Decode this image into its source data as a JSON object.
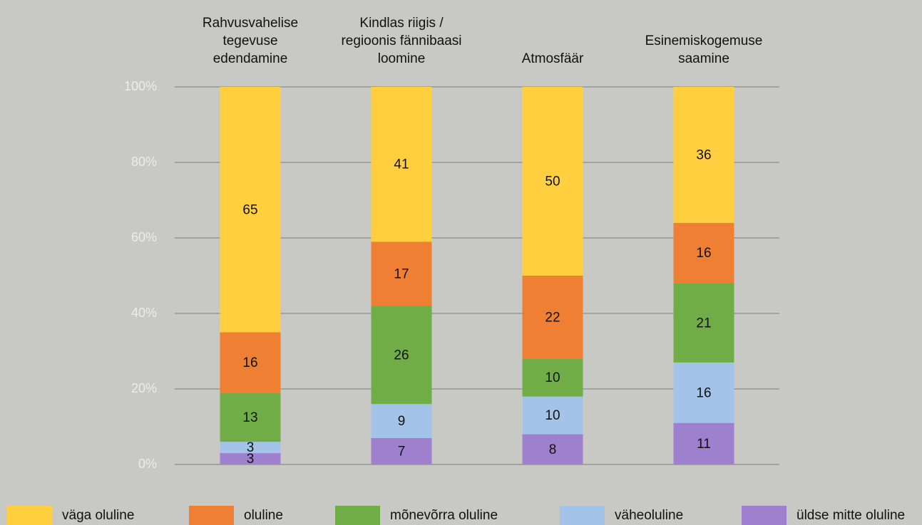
{
  "chart_data": {
    "type": "stacked_bar",
    "categories": [
      "Rahvusvahelise\ntegevuse\nedendamine",
      "Kindlas riigis /\nregioonis fännibaasi\nloomine",
      "Atmosfäär",
      "Esinemiskogemuse\nsaamine"
    ],
    "series": [
      {
        "name": "väga oluline",
        "color": "#ffcf40",
        "values": [
          65,
          41,
          50,
          36
        ]
      },
      {
        "name": "oluline",
        "color": "#ef7f32",
        "values": [
          16,
          17,
          22,
          16
        ]
      },
      {
        "name": "mõnevõrra oluline",
        "color": "#70ad47",
        "values": [
          13,
          26,
          10,
          21
        ]
      },
      {
        "name": "väheoluline",
        "color": "#a3c4e8",
        "values": [
          3,
          9,
          10,
          16
        ]
      },
      {
        "name": "üldse mitte oluline",
        "color": "#9e80cf",
        "values": [
          3,
          7,
          8,
          11
        ]
      }
    ],
    "ylim": [
      0,
      100
    ],
    "yticks": [
      {
        "value": 0,
        "label": "0%"
      },
      {
        "value": 20,
        "label": "20%"
      },
      {
        "value": 40,
        "label": "40%"
      },
      {
        "value": 60,
        "label": "60%"
      },
      {
        "value": 80,
        "label": "80%"
      },
      {
        "value": 100,
        "label": "100%"
      }
    ],
    "grid": true,
    "legend": "bottom"
  }
}
